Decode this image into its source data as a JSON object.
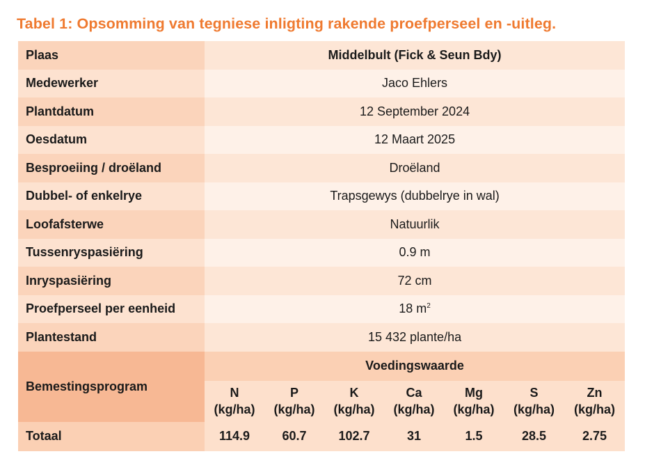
{
  "caption": "Tabel 1: Opsomming van tegniese inligting rakende proefperseel en -uitleg.",
  "rows": [
    {
      "label": "Plaas",
      "value": "Middelbult (Fick & Seun Bdy)"
    },
    {
      "label": "Medewerker",
      "value": "Jaco Ehlers"
    },
    {
      "label": "Plantdatum",
      "value": "12 September 2024"
    },
    {
      "label": "Oesdatum",
      "value": "12 Maart 2025"
    },
    {
      "label": "Besproeiing / droëland",
      "value": "Droëland"
    },
    {
      "label": "Dubbel- of enkelrye",
      "value": "Trapsgewys (dubbelrye in wal)"
    },
    {
      "label": "Loofafsterwe",
      "value": "Natuurlik"
    },
    {
      "label": "Tussenryspasiëring",
      "value": "0.9 m"
    },
    {
      "label": "Inryspasiëring",
      "value": "72 cm"
    },
    {
      "label": "Proefperseel per eenheid",
      "value": "18 m",
      "value_sup": "2"
    },
    {
      "label": "Plantestand",
      "value": "15 432 plante/ha"
    }
  ],
  "fertilization": {
    "label": "Bemestingsprogram",
    "header": "Voedingswaarde",
    "unit": "(kg/ha)",
    "nutrients": [
      "N",
      "P",
      "K",
      "Ca",
      "Mg",
      "S",
      "Zn"
    ],
    "total_label": "Totaal",
    "totals": [
      "114.9",
      "60.7",
      "102.7",
      "31",
      "1.5",
      "28.5",
      "2.75"
    ]
  }
}
